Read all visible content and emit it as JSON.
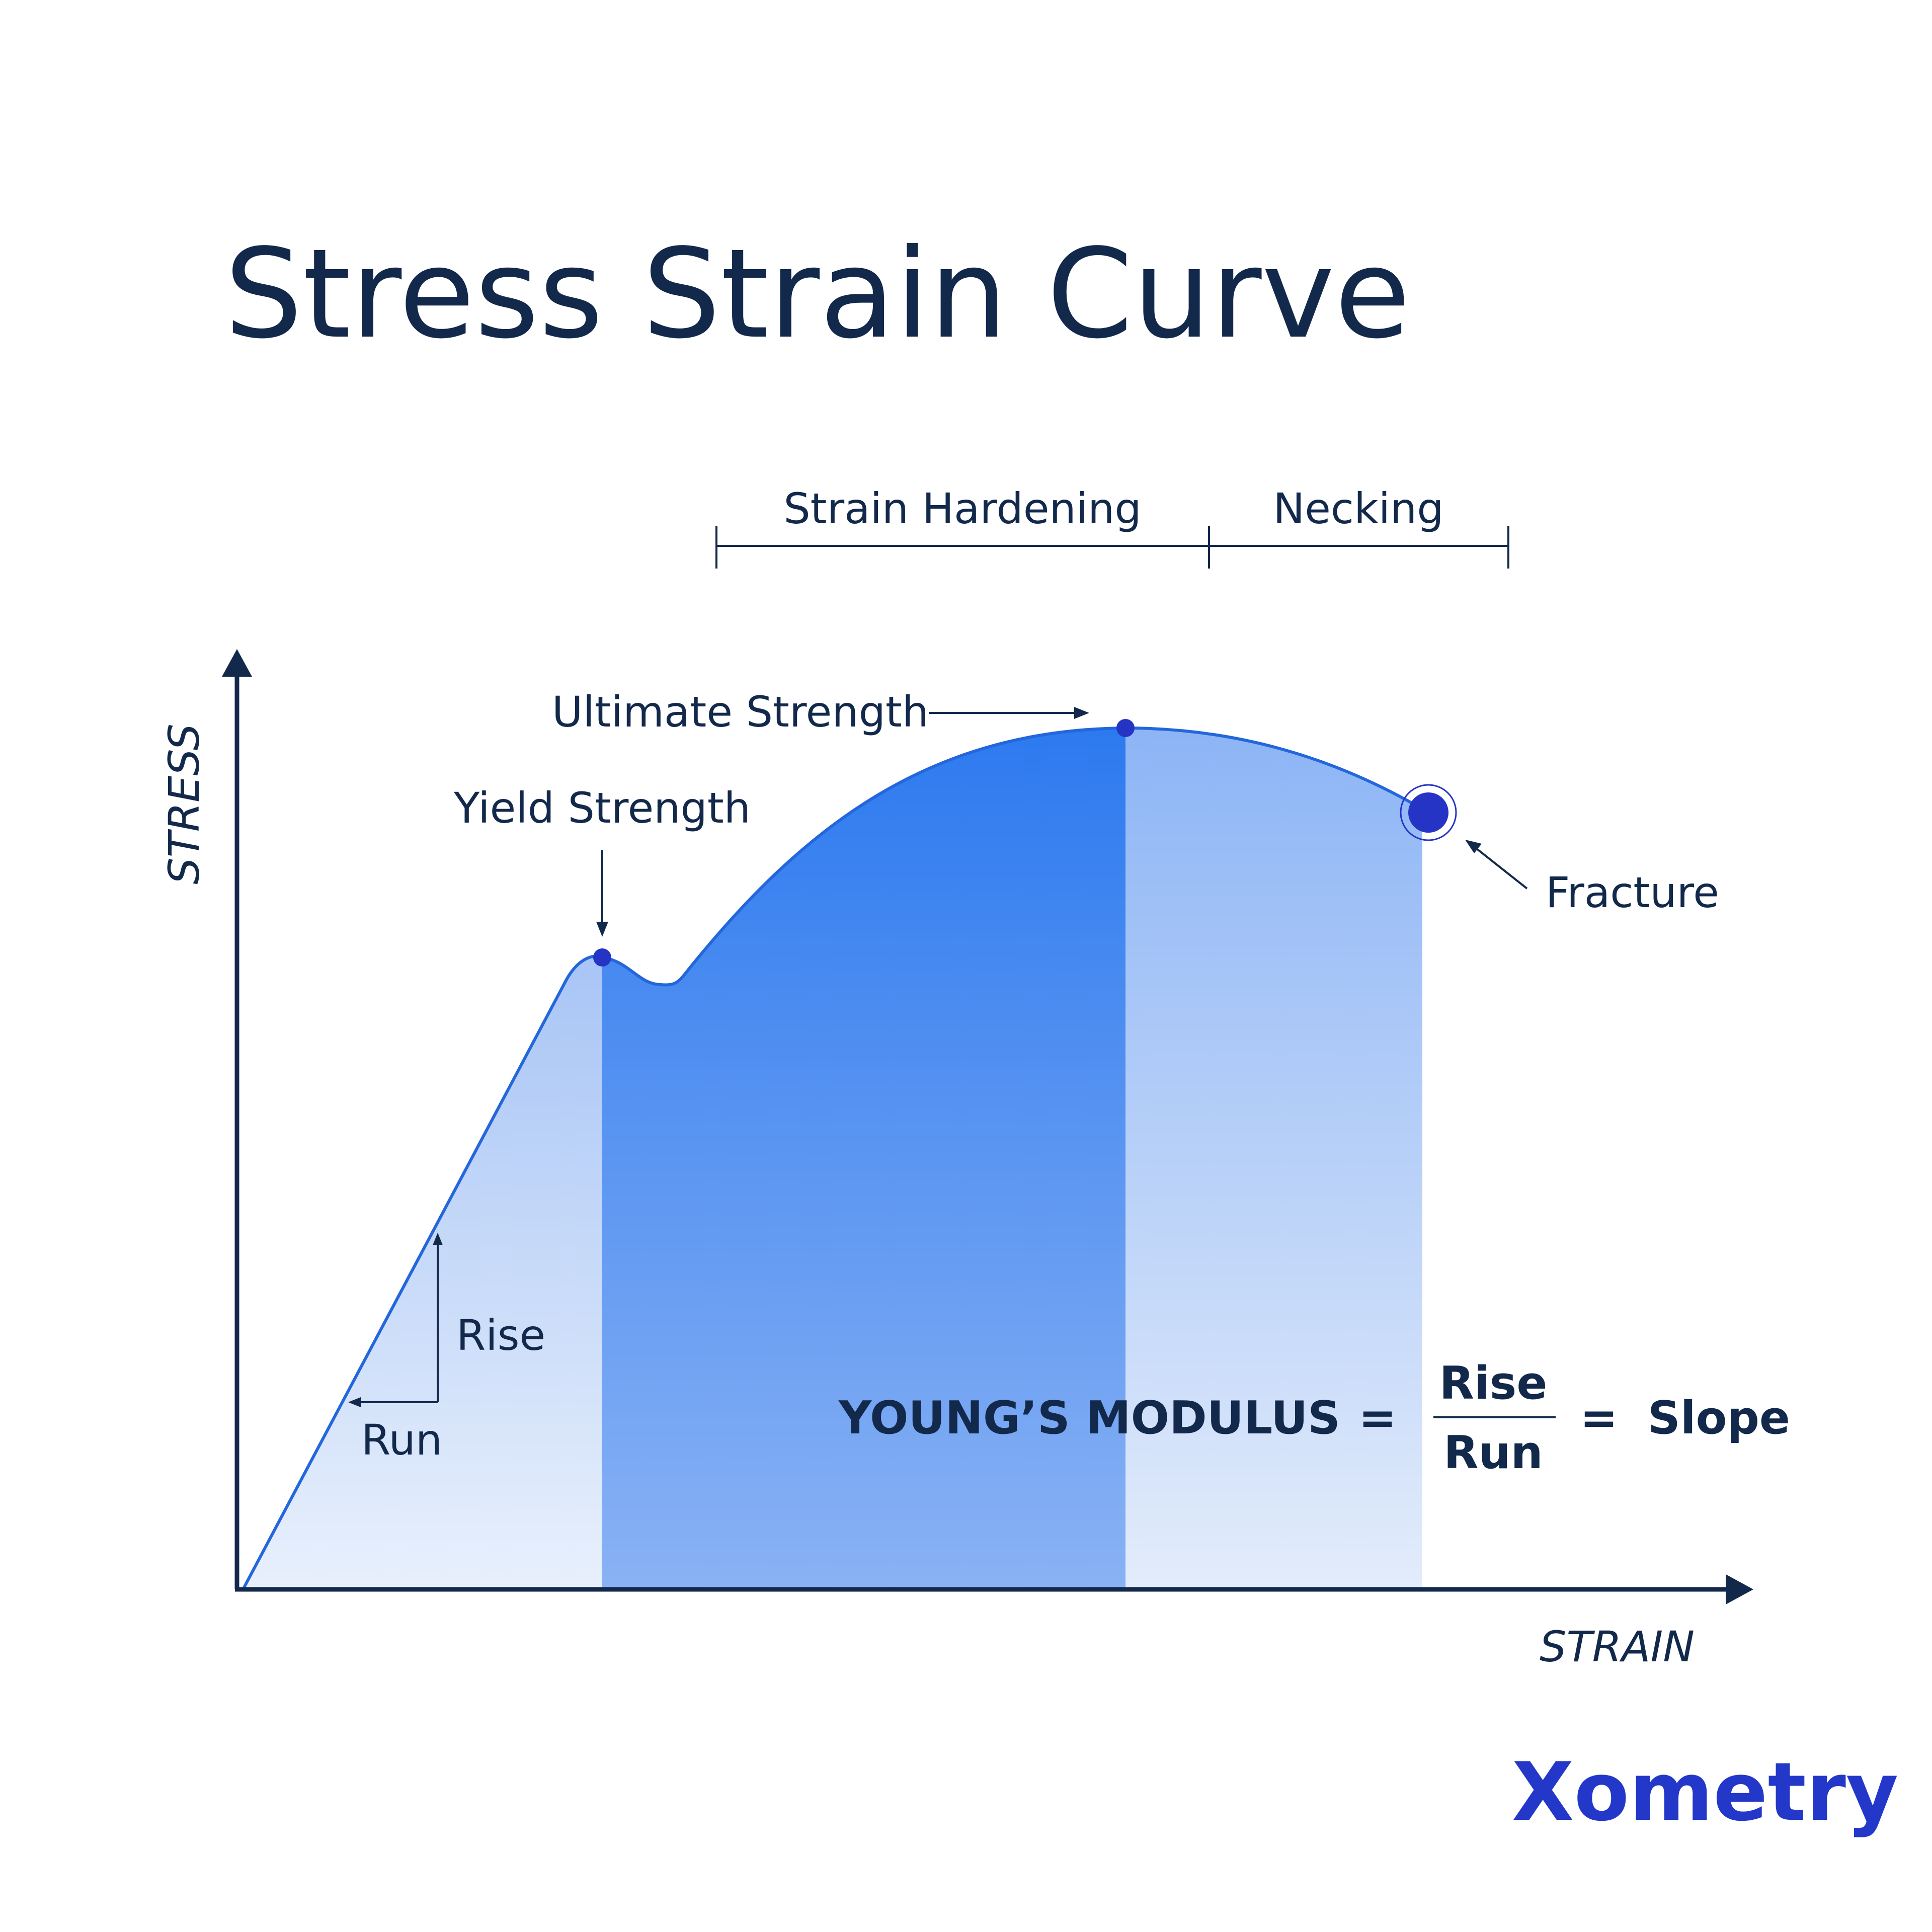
{
  "title": "Stress Strain Curve",
  "regions": {
    "strain_hardening": "Strain Hardening",
    "necking": "Necking"
  },
  "points": {
    "ultimate": "Ultimate Strength",
    "yield": "Yield Strength",
    "fracture": "Fracture"
  },
  "axes": {
    "y": "STRESS",
    "x": "STRAIN"
  },
  "slope": {
    "rise": "Rise",
    "run": "Run"
  },
  "formula": {
    "lhs": "YOUNG’S MODULUS",
    "eq1": "=",
    "numerator": "Rise",
    "denominator": "Run",
    "eq2": "=",
    "rhs": "Slope"
  },
  "logo": "Xometry"
}
